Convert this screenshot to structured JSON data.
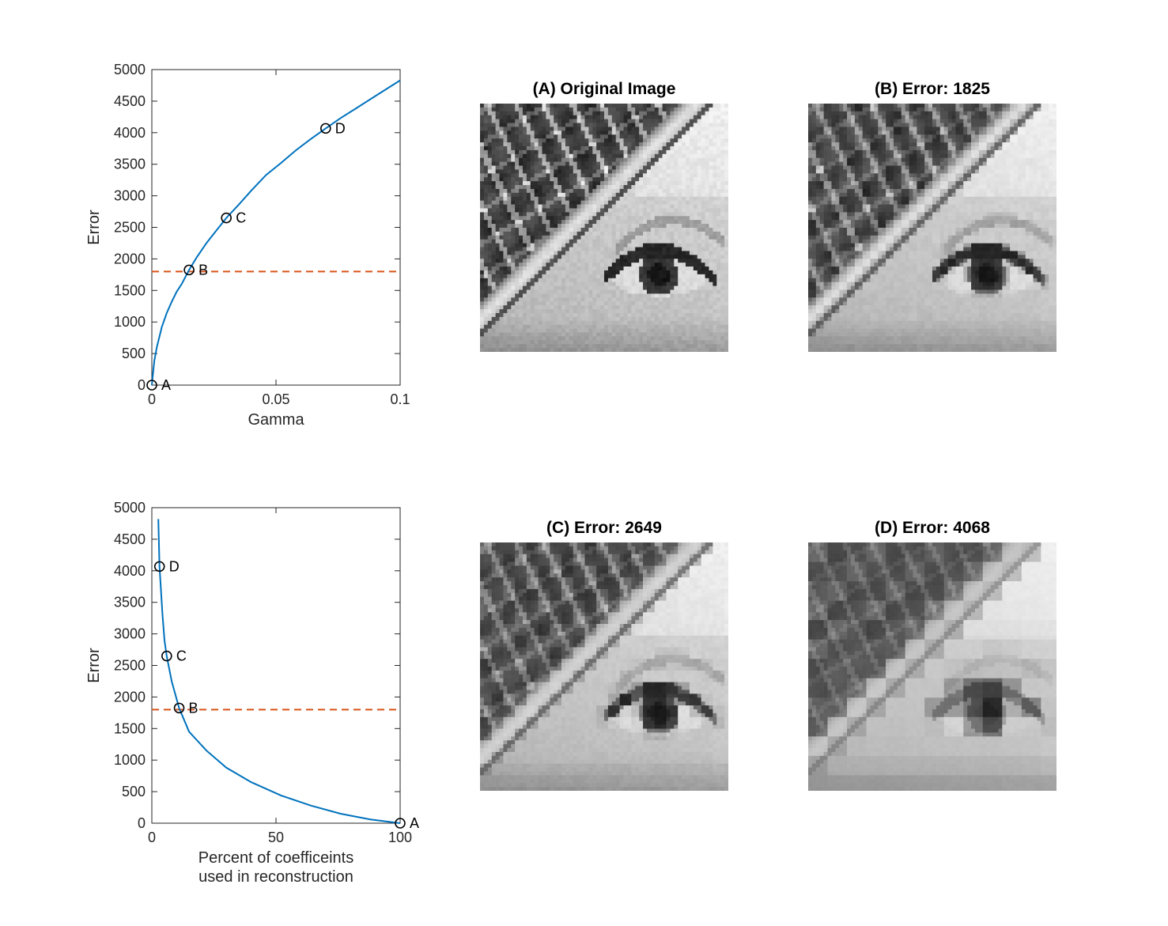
{
  "chart_data": [
    {
      "type": "line",
      "xlabel": "Gamma",
      "ylabel": "Error",
      "xlim": [
        0,
        0.1
      ],
      "ylim": [
        0,
        5000
      ],
      "xticks": [
        0,
        0.05,
        0.1
      ],
      "xtick_labels": [
        "0",
        "0.05",
        "0.1"
      ],
      "yticks": [
        0,
        500,
        1000,
        1500,
        2000,
        2500,
        3000,
        3500,
        4000,
        4500,
        5000
      ],
      "ytick_labels": [
        "0",
        "500",
        "1000",
        "1500",
        "2000",
        "2500",
        "3000",
        "3500",
        "4000",
        "4500",
        "5000"
      ],
      "grid": false,
      "series": [
        {
          "x": [
            0,
            0.001,
            0.002,
            0.004,
            0.006,
            0.008,
            0.01,
            0.012,
            0.015,
            0.018,
            0.022,
            0.026,
            0.03,
            0.035,
            0.04,
            0.046,
            0.052,
            0.058,
            0.064,
            0.07,
            0.076,
            0.082,
            0.088,
            0.094,
            0.1
          ],
          "y": [
            0,
            380,
            600,
            920,
            1140,
            1320,
            1480,
            1600,
            1825,
            2020,
            2250,
            2450,
            2649,
            2860,
            3080,
            3330,
            3520,
            3720,
            3900,
            4068,
            4230,
            4380,
            4530,
            4680,
            4830
          ],
          "color": "#0072BD"
        }
      ],
      "threshold": {
        "y": 1800,
        "color": "#D95319"
      },
      "markers": [
        {
          "label": "A",
          "x": 0,
          "y": 0
        },
        {
          "label": "B",
          "x": 0.015,
          "y": 1825
        },
        {
          "label": "C",
          "x": 0.03,
          "y": 2649
        },
        {
          "label": "D",
          "x": 0.07,
          "y": 4068
        }
      ]
    },
    {
      "type": "line",
      "xlabel": [
        "Percent of coefficeints",
        "used in reconstruction"
      ],
      "ylabel": "Error",
      "xlim": [
        0,
        100
      ],
      "ylim": [
        0,
        5000
      ],
      "xticks": [
        0,
        50,
        100
      ],
      "xtick_labels": [
        "0",
        "50",
        "100"
      ],
      "yticks": [
        0,
        500,
        1000,
        1500,
        2000,
        2500,
        3000,
        3500,
        4000,
        4500,
        5000
      ],
      "ytick_labels": [
        "0",
        "500",
        "1000",
        "1500",
        "2000",
        "2500",
        "3000",
        "3500",
        "4000",
        "4500",
        "5000"
      ],
      "grid": false,
      "series": [
        {
          "x": [
            2.6,
            3.1,
            4.3,
            5.1,
            6,
            8,
            11,
            15,
            22,
            30,
            40,
            52,
            64,
            76,
            88,
            100
          ],
          "y": [
            4820,
            4068,
            3300,
            2900,
            2649,
            2250,
            1825,
            1450,
            1150,
            880,
            650,
            440,
            280,
            150,
            60,
            0
          ],
          "color": "#0072BD"
        }
      ],
      "threshold": {
        "y": 1800,
        "color": "#D95319"
      },
      "markers": [
        {
          "label": "D",
          "x": 3.1,
          "y": 4068
        },
        {
          "label": "C",
          "x": 6,
          "y": 2649
        },
        {
          "label": "B",
          "x": 11,
          "y": 1825
        },
        {
          "label": "A",
          "x": 100,
          "y": 0
        }
      ]
    }
  ],
  "images": {
    "original": {
      "title": "(A) Original Image",
      "block_size": 1
    },
    "b": {
      "title": "(B) Error: 1825",
      "block_size": 2
    },
    "c": {
      "title": "(C) Error: 2649",
      "block_size": 3
    },
    "d": {
      "title": "(D) Error: 4068",
      "block_size": 5
    }
  }
}
